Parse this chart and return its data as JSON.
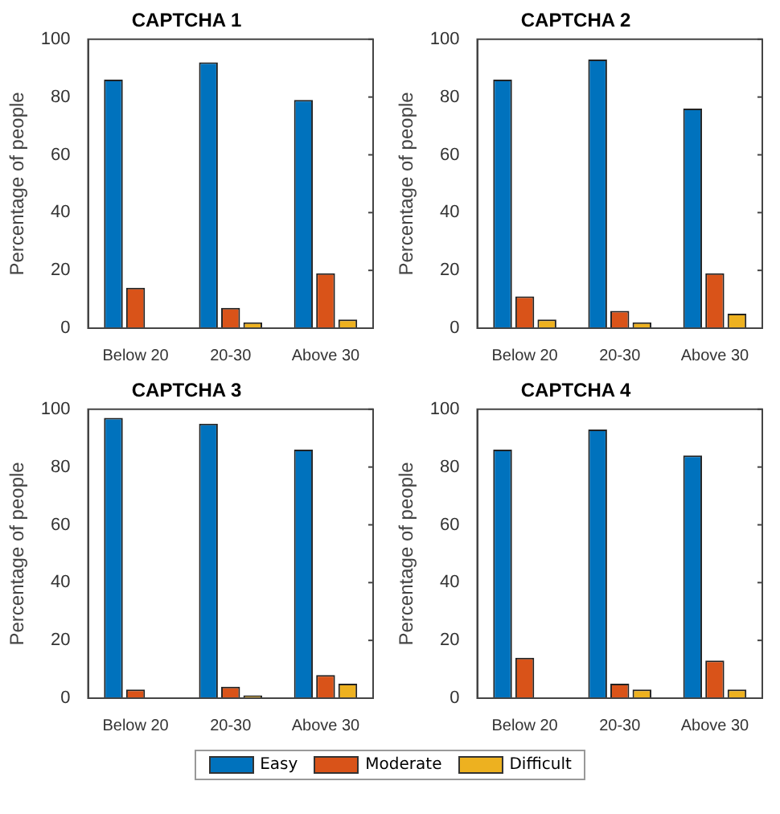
{
  "chart_data": [
    {
      "type": "bar",
      "title": "CAPTCHA 1",
      "ylabel": "Percentage of people",
      "categories": [
        "Below 20",
        "20-30",
        "Above 30"
      ],
      "ylim": [
        0,
        100
      ],
      "yticks": [
        0,
        20,
        40,
        60,
        80,
        100
      ],
      "grid": false,
      "legend": "bottom",
      "series": [
        {
          "name": "Easy",
          "color": "#0072bd",
          "values": [
            86,
            92,
            79
          ]
        },
        {
          "name": "Moderate",
          "color": "#d95319",
          "values": [
            14,
            7,
            19
          ]
        },
        {
          "name": "Difficult",
          "color": "#edb120",
          "values": [
            0,
            2,
            3
          ]
        }
      ]
    },
    {
      "type": "bar",
      "title": "CAPTCHA 2",
      "ylabel": "Percentage of people",
      "categories": [
        "Below 20",
        "20-30",
        "Above 30"
      ],
      "ylim": [
        0,
        100
      ],
      "yticks": [
        0,
        20,
        40,
        60,
        80,
        100
      ],
      "grid": false,
      "legend": "bottom",
      "series": [
        {
          "name": "Easy",
          "color": "#0072bd",
          "values": [
            86,
            93,
            76
          ]
        },
        {
          "name": "Moderate",
          "color": "#d95319",
          "values": [
            11,
            6,
            19
          ]
        },
        {
          "name": "Difficult",
          "color": "#edb120",
          "values": [
            3,
            2,
            5
          ]
        }
      ]
    },
    {
      "type": "bar",
      "title": "CAPTCHA 3",
      "ylabel": "Percentage of people",
      "categories": [
        "Below 20",
        "20-30",
        "Above 30"
      ],
      "ylim": [
        0,
        100
      ],
      "yticks": [
        0,
        20,
        40,
        60,
        80,
        100
      ],
      "grid": false,
      "legend": "bottom",
      "series": [
        {
          "name": "Easy",
          "color": "#0072bd",
          "values": [
            97,
            95,
            86
          ]
        },
        {
          "name": "Moderate",
          "color": "#d95319",
          "values": [
            3,
            4,
            8
          ]
        },
        {
          "name": "Difficult",
          "color": "#edb120",
          "values": [
            0,
            1,
            5
          ]
        }
      ]
    },
    {
      "type": "bar",
      "title": "CAPTCHA 4",
      "ylabel": "Percentage of people",
      "categories": [
        "Below 20",
        "20-30",
        "Above 30"
      ],
      "ylim": [
        0,
        100
      ],
      "yticks": [
        0,
        20,
        40,
        60,
        80,
        100
      ],
      "grid": false,
      "legend": "bottom",
      "series": [
        {
          "name": "Easy",
          "color": "#0072bd",
          "values": [
            86,
            93,
            84
          ]
        },
        {
          "name": "Moderate",
          "color": "#d95319",
          "values": [
            14,
            5,
            13
          ]
        },
        {
          "name": "Difficult",
          "color": "#edb120",
          "values": [
            0,
            3,
            3
          ]
        }
      ]
    }
  ]
}
